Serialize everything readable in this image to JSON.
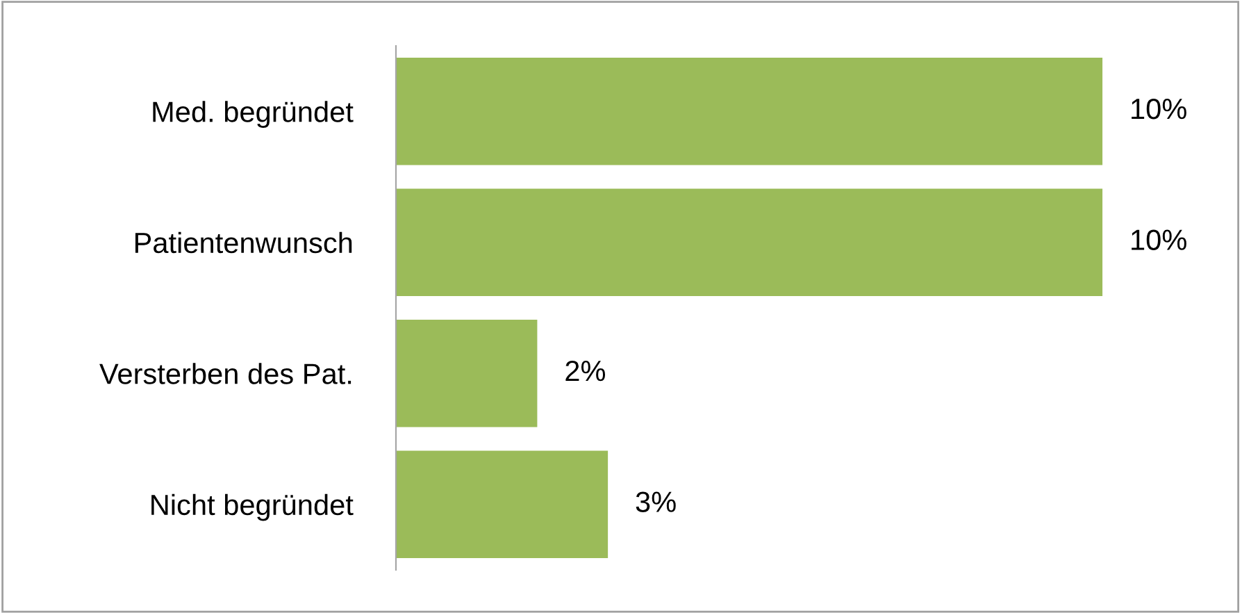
{
  "chart_data": {
    "type": "bar",
    "orientation": "horizontal",
    "categories": [
      "Med. begründet",
      "Patientenwunsch",
      "Versterben des Pat.",
      "Nicht begründet"
    ],
    "values": [
      10,
      10,
      2,
      3
    ],
    "value_labels": [
      "10%",
      "10%",
      "2%",
      "3%"
    ],
    "color": "#9bbb59",
    "grid": false,
    "legend": false
  }
}
